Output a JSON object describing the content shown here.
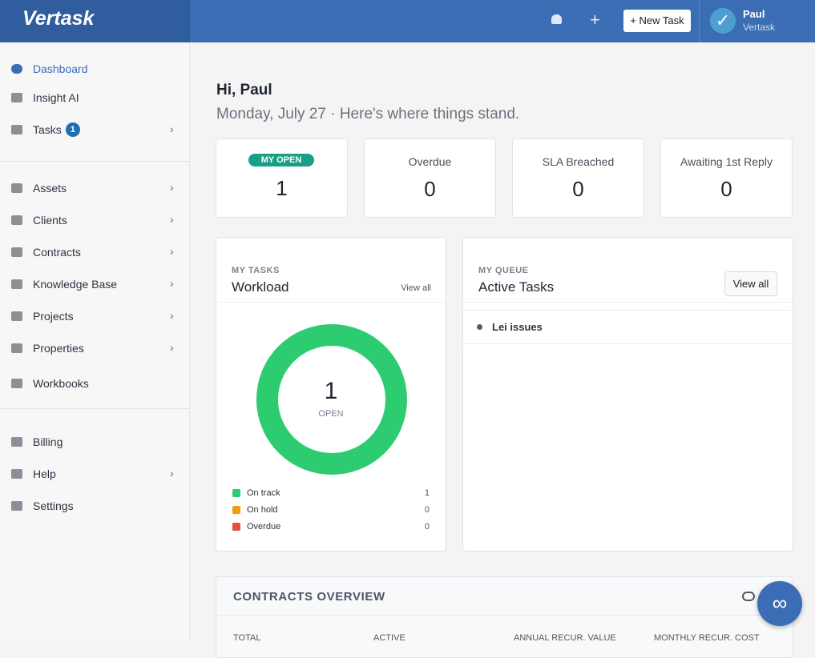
{
  "header": {
    "brand": "Vertask",
    "new_task": "+ New Task",
    "user_name": "Paul",
    "user_org": "Vertask"
  },
  "sidebar": {
    "items": [
      {
        "label": "Dashboard"
      },
      {
        "label": "Insight AI"
      },
      {
        "label": "Tasks",
        "badge": "1"
      },
      {
        "label": "Assets"
      },
      {
        "label": "Clients"
      },
      {
        "label": "Contracts"
      },
      {
        "label": "Knowledge Base"
      },
      {
        "label": "Projects"
      },
      {
        "label": "Properties"
      },
      {
        "label": "Workbooks"
      },
      {
        "label": "Billing"
      },
      {
        "label": "Help"
      },
      {
        "label": "Settings"
      }
    ]
  },
  "greeting": {
    "title": "Hi, Paul",
    "subtitle": "Monday, July 27 · Here's where things stand."
  },
  "stats": [
    {
      "label": "MY OPEN",
      "value": "1"
    },
    {
      "label": "Overdue",
      "value": "0"
    },
    {
      "label": "SLA Breached",
      "value": "0"
    },
    {
      "label": "Awaiting 1st Reply",
      "value": "0"
    }
  ],
  "workload": {
    "eyebrow": "MY TASKS",
    "title": "Workload",
    "link": "View all",
    "center_value": "1",
    "center_label": "OPEN",
    "legend": [
      {
        "label": "On track",
        "value": 1,
        "color": "#2ecc71"
      },
      {
        "label": "On hold",
        "value": 0,
        "color": "#f39c12"
      },
      {
        "label": "Overdue",
        "value": 0,
        "color": "#e74c3c"
      }
    ]
  },
  "queue": {
    "eyebrow": "MY QUEUE",
    "title": "Active Tasks",
    "link": "View all",
    "items": [
      "Lei issues"
    ]
  },
  "contracts": {
    "title": "CONTRACTS OVERVIEW",
    "columns": [
      "TOTAL",
      "ACTIVE",
      "ANNUAL RECUR. VALUE",
      "MONTHLY RECUR. COST"
    ]
  }
}
